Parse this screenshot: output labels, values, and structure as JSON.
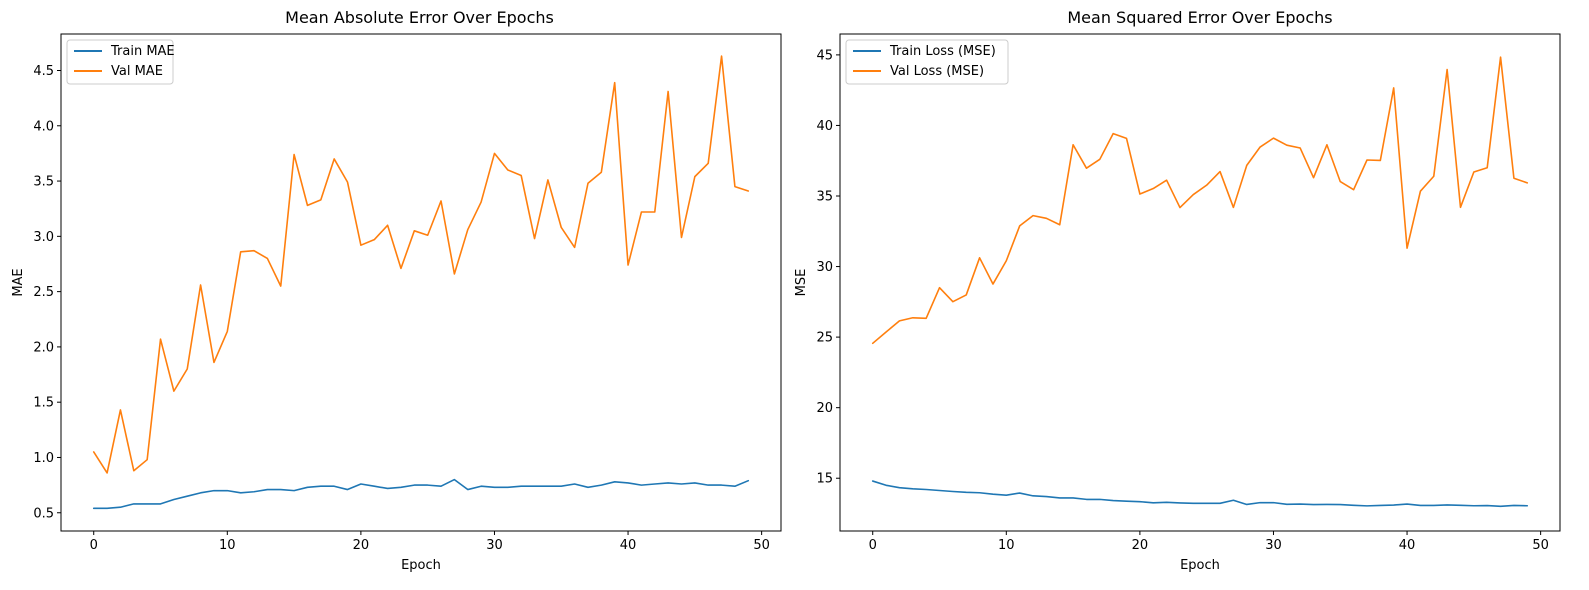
{
  "chart_data": [
    {
      "type": "line",
      "title": "Mean Absolute Error Over Epochs",
      "xlabel": "Epoch",
      "ylabel": "MAE",
      "xlim": [
        -2.45,
        51.45
      ],
      "ylim": [
        0.335,
        4.83
      ],
      "xticks": [
        0,
        10,
        20,
        30,
        40,
        50
      ],
      "yticks": [
        0.5,
        1.0,
        1.5,
        2.0,
        2.5,
        3.0,
        3.5,
        4.0,
        4.5
      ],
      "ytick_labels": [
        "0.5",
        "1.0",
        "1.5",
        "2.0",
        "2.5",
        "3.0",
        "3.5",
        "4.0",
        "4.5"
      ],
      "grid": false,
      "legend_position": "upper left",
      "x": [
        0,
        1,
        2,
        3,
        4,
        5,
        6,
        7,
        8,
        9,
        10,
        11,
        12,
        13,
        14,
        15,
        16,
        17,
        18,
        19,
        20,
        21,
        22,
        23,
        24,
        25,
        26,
        27,
        28,
        29,
        30,
        31,
        32,
        33,
        34,
        35,
        36,
        37,
        38,
        39,
        40,
        41,
        42,
        43,
        44,
        45,
        46,
        47,
        48,
        49
      ],
      "series": [
        {
          "name": "Train MAE",
          "color": "#1f77b4",
          "values": [
            0.54,
            0.54,
            0.55,
            0.58,
            0.58,
            0.58,
            0.62,
            0.65,
            0.68,
            0.7,
            0.7,
            0.68,
            0.69,
            0.71,
            0.71,
            0.7,
            0.73,
            0.74,
            0.74,
            0.71,
            0.76,
            0.74,
            0.72,
            0.73,
            0.75,
            0.75,
            0.74,
            0.8,
            0.71,
            0.74,
            0.73,
            0.73,
            0.74,
            0.74,
            0.74,
            0.74,
            0.76,
            0.73,
            0.75,
            0.78,
            0.77,
            0.75,
            0.76,
            0.77,
            0.76,
            0.77,
            0.75,
            0.75,
            0.74,
            0.79
          ]
        },
        {
          "name": "Val MAE",
          "color": "#ff7f0e",
          "values": [
            1.05,
            0.86,
            1.43,
            0.88,
            0.98,
            2.07,
            1.6,
            1.8,
            2.56,
            1.86,
            2.14,
            2.86,
            2.87,
            2.8,
            2.55,
            3.74,
            3.28,
            3.33,
            3.7,
            3.49,
            2.92,
            2.97,
            3.1,
            2.71,
            3.05,
            3.01,
            3.32,
            2.66,
            3.06,
            3.31,
            3.75,
            3.6,
            3.55,
            2.98,
            3.51,
            3.08,
            2.9,
            3.48,
            3.58,
            4.39,
            2.74,
            3.22,
            3.22,
            4.31,
            2.99,
            3.54,
            3.66,
            4.63,
            3.45,
            3.41
          ]
        }
      ]
    },
    {
      "type": "line",
      "title": "Mean Squared Error Over Epochs",
      "xlabel": "Epoch",
      "ylabel": "MSE",
      "xlim": [
        -2.45,
        51.45
      ],
      "ylim": [
        11.26,
        46.48
      ],
      "xticks": [
        0,
        10,
        20,
        30,
        40,
        50
      ],
      "yticks": [
        15,
        20,
        25,
        30,
        35,
        40,
        45
      ],
      "ytick_labels": [
        "15",
        "20",
        "25",
        "30",
        "35",
        "40",
        "45"
      ],
      "grid": false,
      "legend_position": "upper left",
      "x": [
        0,
        1,
        2,
        3,
        4,
        5,
        6,
        7,
        8,
        9,
        10,
        11,
        12,
        13,
        14,
        15,
        16,
        17,
        18,
        19,
        20,
        21,
        22,
        23,
        24,
        25,
        26,
        27,
        28,
        29,
        30,
        31,
        32,
        33,
        34,
        35,
        36,
        37,
        38,
        39,
        40,
        41,
        42,
        43,
        44,
        45,
        46,
        47,
        48,
        49
      ],
      "series": [
        {
          "name": "Train Loss (MSE)",
          "color": "#1f77b4",
          "values": [
            14.8,
            14.5,
            14.33,
            14.25,
            14.2,
            14.13,
            14.06,
            14.0,
            13.97,
            13.87,
            13.8,
            13.95,
            13.75,
            13.7,
            13.6,
            13.6,
            13.5,
            13.5,
            13.42,
            13.37,
            13.34,
            13.26,
            13.29,
            13.25,
            13.22,
            13.22,
            13.22,
            13.44,
            13.14,
            13.27,
            13.27,
            13.15,
            13.17,
            13.13,
            13.14,
            13.13,
            13.08,
            13.04,
            13.07,
            13.1,
            13.17,
            13.07,
            13.07,
            13.11,
            13.08,
            13.05,
            13.06,
            13.01,
            13.07,
            13.05
          ]
        },
        {
          "name": "Val Loss (MSE)",
          "color": "#ff7f0e",
          "values": [
            24.56,
            25.36,
            26.15,
            26.37,
            26.33,
            28.5,
            27.51,
            27.99,
            30.62,
            28.76,
            30.41,
            32.88,
            33.61,
            33.42,
            32.96,
            38.63,
            36.97,
            37.6,
            39.42,
            39.08,
            35.14,
            35.53,
            36.12,
            34.18,
            35.1,
            35.77,
            36.73,
            34.19,
            37.17,
            38.47,
            39.1,
            38.6,
            38.4,
            36.3,
            38.63,
            36.02,
            35.45,
            37.55,
            37.52,
            42.66,
            31.3,
            35.34,
            36.4,
            43.96,
            34.2,
            36.7,
            37.0,
            44.84,
            36.26,
            35.93
          ]
        }
      ]
    }
  ]
}
